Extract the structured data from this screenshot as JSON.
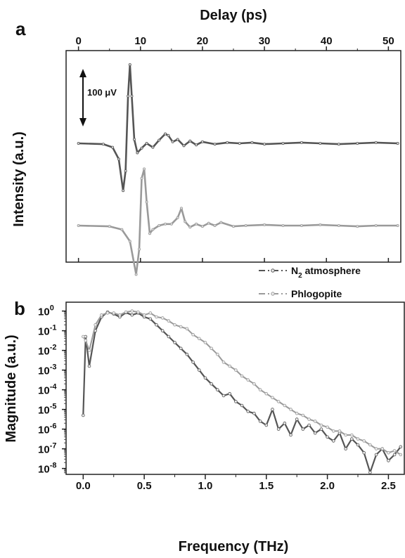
{
  "chart_data": [
    {
      "panel": "a",
      "type": "line",
      "xlabel": "Delay (ps)",
      "ylabel": "Intensity (a.u.)",
      "xlim": [
        -2,
        52
      ],
      "xticks": [
        0,
        10,
        20,
        30,
        40,
        50
      ],
      "x_axis_position": "top",
      "annotation": "100 μV",
      "series": [
        {
          "label": "N2 atmosphere",
          "color": "#555555",
          "x": [
            0,
            4,
            5.5,
            6.5,
            7.2,
            7.6,
            8.0,
            8.3,
            8.6,
            9.0,
            9.5,
            10.2,
            11,
            12,
            13,
            14,
            14.5,
            15.2,
            16,
            17,
            18,
            19,
            20,
            22,
            24,
            26,
            28,
            30,
            33,
            36,
            39,
            42,
            45,
            48,
            51.5
          ],
          "y": [
            0,
            -0.01,
            -0.05,
            -0.2,
            -0.6,
            -0.35,
            0.6,
            1.0,
            0.6,
            0.05,
            -0.12,
            -0.06,
            0.0,
            -0.05,
            0.04,
            0.12,
            0.1,
            0.02,
            0.05,
            -0.03,
            0.03,
            -0.02,
            0.02,
            -0.01,
            0.01,
            0.0,
            0.01,
            -0.01,
            0.0,
            0.01,
            0.0,
            -0.01,
            0.0,
            0.01,
            0.0
          ]
        },
        {
          "label": "Phlogopite",
          "color": "#9a9a9a",
          "x": [
            0,
            5,
            7,
            8.3,
            9.3,
            9.8,
            10.2,
            10.6,
            11.0,
            11.5,
            12,
            13,
            14,
            15,
            16.0,
            16.6,
            17.2,
            18,
            19,
            20,
            21,
            22,
            23,
            25,
            27,
            30,
            33,
            36,
            39,
            42,
            45,
            48,
            51.5
          ],
          "y": [
            0,
            -0.01,
            -0.05,
            -0.2,
            -0.62,
            -0.3,
            0.6,
            0.72,
            0.3,
            -0.1,
            -0.05,
            0.0,
            0.02,
            0.02,
            0.1,
            0.22,
            0.05,
            -0.02,
            0.02,
            -0.01,
            0.03,
            0.0,
            0.04,
            -0.01,
            0.0,
            0.01,
            0.0,
            0.0,
            0.01,
            0.0,
            -0.01,
            0.0,
            0.0
          ]
        }
      ]
    },
    {
      "panel": "b",
      "type": "line",
      "xlabel": "Frequency (THz)",
      "ylabel": "Magnitude (a.u.)",
      "log_y": true,
      "xlim": [
        -0.14,
        2.63
      ],
      "ylim_exp": [
        -8.3,
        0.45
      ],
      "xticks": [
        0.0,
        0.5,
        1.0,
        1.5,
        2.0,
        2.5
      ],
      "yticks": [
        1,
        0.1,
        0.01,
        0.001,
        0.0001,
        1e-05,
        1e-06,
        1e-07,
        1e-08
      ],
      "ytick_labels": [
        {
          "base": "10",
          "exp": "0"
        },
        {
          "base": "10",
          "exp": "-1"
        },
        {
          "base": "10",
          "exp": "-2"
        },
        {
          "base": "10",
          "exp": "-3"
        },
        {
          "base": "10",
          "exp": "-4"
        },
        {
          "base": "10",
          "exp": "-5"
        },
        {
          "base": "10",
          "exp": "-6"
        },
        {
          "base": "10",
          "exp": "-7"
        },
        {
          "base": "10",
          "exp": "-8"
        }
      ],
      "legend_position": "top-right",
      "legend": [
        {
          "name": "N",
          "sub": "2",
          "rest": " atmosphere",
          "color": "#555555"
        },
        {
          "name": "Phlogopite",
          "sub": "",
          "rest": "",
          "color": "#9a9a9a"
        }
      ],
      "series": [
        {
          "label": "N2 atmosphere",
          "color": "#555555",
          "x": [
            0.0,
            0.02,
            0.05,
            0.1,
            0.15,
            0.2,
            0.25,
            0.3,
            0.35,
            0.4,
            0.45,
            0.5,
            0.55,
            0.6,
            0.65,
            0.7,
            0.75,
            0.8,
            0.85,
            0.9,
            0.95,
            1.0,
            1.05,
            1.1,
            1.15,
            1.2,
            1.25,
            1.3,
            1.35,
            1.4,
            1.45,
            1.5,
            1.55,
            1.6,
            1.65,
            1.7,
            1.75,
            1.8,
            1.85,
            1.9,
            1.95,
            2.0,
            2.05,
            2.1,
            2.15,
            2.2,
            2.25,
            2.3,
            2.35,
            2.4,
            2.45,
            2.5,
            2.55,
            2.6
          ],
          "y_log10": [
            -5.3,
            -1.3,
            -2.8,
            -1.0,
            -0.3,
            -0.05,
            -0.15,
            -0.3,
            -0.08,
            -0.2,
            -0.1,
            -0.3,
            -0.4,
            -0.7,
            -1.0,
            -1.3,
            -1.6,
            -1.9,
            -2.2,
            -2.6,
            -3.0,
            -3.4,
            -3.7,
            -4.0,
            -4.3,
            -4.2,
            -4.6,
            -4.8,
            -5.1,
            -5.2,
            -5.6,
            -5.8,
            -5.0,
            -6.0,
            -5.7,
            -6.3,
            -5.5,
            -6.0,
            -5.8,
            -6.2,
            -6.0,
            -6.4,
            -6.6,
            -6.2,
            -7.0,
            -6.5,
            -6.8,
            -7.2,
            -8.2,
            -7.3,
            -7.0,
            -7.6,
            -7.3,
            -6.9
          ]
        },
        {
          "label": "Phlogopite",
          "color": "#9a9a9a",
          "x": [
            0.0,
            0.02,
            0.05,
            0.1,
            0.15,
            0.2,
            0.25,
            0.3,
            0.35,
            0.4,
            0.45,
            0.5,
            0.55,
            0.6,
            0.65,
            0.7,
            0.75,
            0.8,
            0.85,
            0.9,
            0.95,
            1.0,
            1.05,
            1.1,
            1.15,
            1.2,
            1.25,
            1.3,
            1.35,
            1.4,
            1.45,
            1.5,
            1.55,
            1.6,
            1.65,
            1.7,
            1.75,
            1.8,
            1.85,
            1.9,
            1.95,
            2.0,
            2.05,
            2.1,
            2.15,
            2.2,
            2.25,
            2.3,
            2.35,
            2.4,
            2.45,
            2.5,
            2.55,
            2.6
          ],
          "y_log10": [
            -1.3,
            -1.5,
            -2.0,
            -0.7,
            -0.2,
            -0.1,
            -0.1,
            -0.2,
            -0.05,
            0.0,
            -0.05,
            -0.2,
            -0.1,
            -0.3,
            -0.35,
            -0.5,
            -0.7,
            -0.8,
            -0.9,
            -1.2,
            -1.4,
            -1.6,
            -1.9,
            -2.2,
            -2.6,
            -2.8,
            -3.0,
            -3.3,
            -3.5,
            -3.7,
            -4.0,
            -4.2,
            -4.4,
            -4.6,
            -4.8,
            -5.0,
            -5.2,
            -5.3,
            -5.5,
            -5.6,
            -5.8,
            -5.9,
            -6.1,
            -6.1,
            -6.3,
            -6.3,
            -6.5,
            -6.6,
            -6.8,
            -7.0,
            -7.0,
            -7.2,
            -7.1,
            -7.3
          ]
        }
      ]
    }
  ]
}
